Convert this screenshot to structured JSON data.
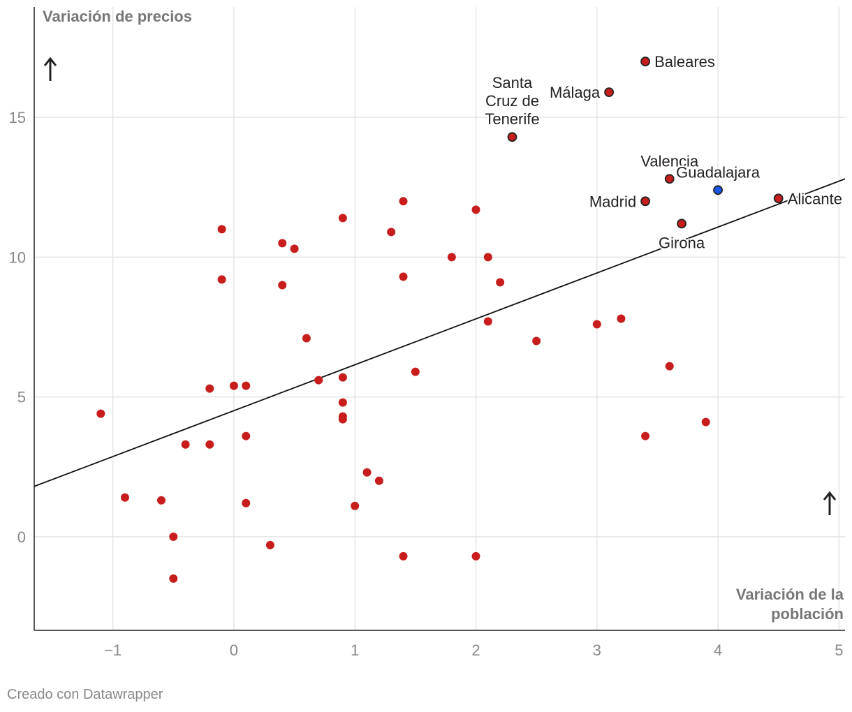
{
  "chart_data": {
    "type": "scatter",
    "ylabel": "Variación de precios",
    "xlabel_lines": [
      "Variación de la",
      "población"
    ],
    "xlim": [
      -1.65,
      5.05
    ],
    "ylim": [
      -3.35,
      18.95
    ],
    "x_ticks": [
      -1,
      0,
      1,
      2,
      3,
      4,
      5
    ],
    "x_tick_labels": [
      "−1",
      "0",
      "1",
      "2",
      "3",
      "4",
      "5"
    ],
    "y_ticks": [
      0,
      5,
      10,
      15
    ],
    "y_tick_labels": [
      "0",
      "5",
      "10",
      "15"
    ],
    "grid": true,
    "trendline": {
      "x": [
        -1.65,
        5.05
      ],
      "y": [
        1.8,
        12.8
      ]
    },
    "colors": {
      "default": "#c71e1d",
      "highlight": "#1a56e8",
      "outline": "#222222"
    },
    "labeled_points": [
      {
        "label_lines": [
          "Baleares"
        ],
        "x": 3.4,
        "y": 17.0,
        "label_pos": "right"
      },
      {
        "label_lines": [
          "Málaga"
        ],
        "x": 3.1,
        "y": 15.9,
        "label_pos": "left"
      },
      {
        "label_lines": [
          "Santa",
          "Cruz de",
          "Tenerife"
        ],
        "x": 2.3,
        "y": 14.3,
        "label_pos": "top"
      },
      {
        "label_lines": [
          "Valencia"
        ],
        "x": 3.6,
        "y": 12.8,
        "label_pos": "top"
      },
      {
        "label_lines": [
          "Guadalajara"
        ],
        "x": 4.0,
        "y": 12.4,
        "label_pos": "top",
        "highlight": true
      },
      {
        "label_lines": [
          "Madrid"
        ],
        "x": 3.4,
        "y": 12.0,
        "label_pos": "left"
      },
      {
        "label_lines": [
          "Alicante"
        ],
        "x": 4.5,
        "y": 12.1,
        "label_pos": "right"
      },
      {
        "label_lines": [
          "Girona"
        ],
        "x": 3.7,
        "y": 11.2,
        "label_pos": "bottom"
      }
    ],
    "points": [
      {
        "x": -1.1,
        "y": 4.4
      },
      {
        "x": -0.9,
        "y": 1.4
      },
      {
        "x": -0.6,
        "y": 1.3
      },
      {
        "x": -0.5,
        "y": 0.0
      },
      {
        "x": -0.5,
        "y": -1.5
      },
      {
        "x": -0.4,
        "y": 3.3
      },
      {
        "x": -0.2,
        "y": 3.3
      },
      {
        "x": -0.2,
        "y": 5.3
      },
      {
        "x": -0.1,
        "y": 11.0
      },
      {
        "x": -0.1,
        "y": 9.2
      },
      {
        "x": 0.0,
        "y": 5.4
      },
      {
        "x": 0.1,
        "y": 5.4
      },
      {
        "x": 0.1,
        "y": 3.6
      },
      {
        "x": 0.1,
        "y": 1.2
      },
      {
        "x": 0.3,
        "y": -0.3
      },
      {
        "x": 0.4,
        "y": 10.5
      },
      {
        "x": 0.4,
        "y": 9.0
      },
      {
        "x": 0.5,
        "y": 10.3
      },
      {
        "x": 0.6,
        "y": 7.1
      },
      {
        "x": 0.7,
        "y": 5.6
      },
      {
        "x": 0.9,
        "y": 11.4
      },
      {
        "x": 0.9,
        "y": 5.7
      },
      {
        "x": 0.9,
        "y": 4.8
      },
      {
        "x": 0.9,
        "y": 4.3
      },
      {
        "x": 0.9,
        "y": 4.2
      },
      {
        "x": 1.0,
        "y": 1.1
      },
      {
        "x": 1.1,
        "y": 2.3
      },
      {
        "x": 1.2,
        "y": 2.0
      },
      {
        "x": 1.3,
        "y": 10.9
      },
      {
        "x": 1.4,
        "y": 12.0
      },
      {
        "x": 1.4,
        "y": 9.3
      },
      {
        "x": 1.4,
        "y": -0.7
      },
      {
        "x": 1.5,
        "y": 5.9
      },
      {
        "x": 1.8,
        "y": 10.0
      },
      {
        "x": 2.0,
        "y": 11.7
      },
      {
        "x": 2.0,
        "y": -0.7
      },
      {
        "x": 2.1,
        "y": 10.0
      },
      {
        "x": 2.1,
        "y": 7.7
      },
      {
        "x": 2.2,
        "y": 9.1
      },
      {
        "x": 2.5,
        "y": 7.0
      },
      {
        "x": 3.0,
        "y": 7.6
      },
      {
        "x": 3.2,
        "y": 7.8
      },
      {
        "x": 3.4,
        "y": 3.6
      },
      {
        "x": 3.6,
        "y": 6.1
      },
      {
        "x": 3.9,
        "y": 4.1
      }
    ]
  },
  "footer": {
    "credit": "Creado con Datawrapper"
  }
}
